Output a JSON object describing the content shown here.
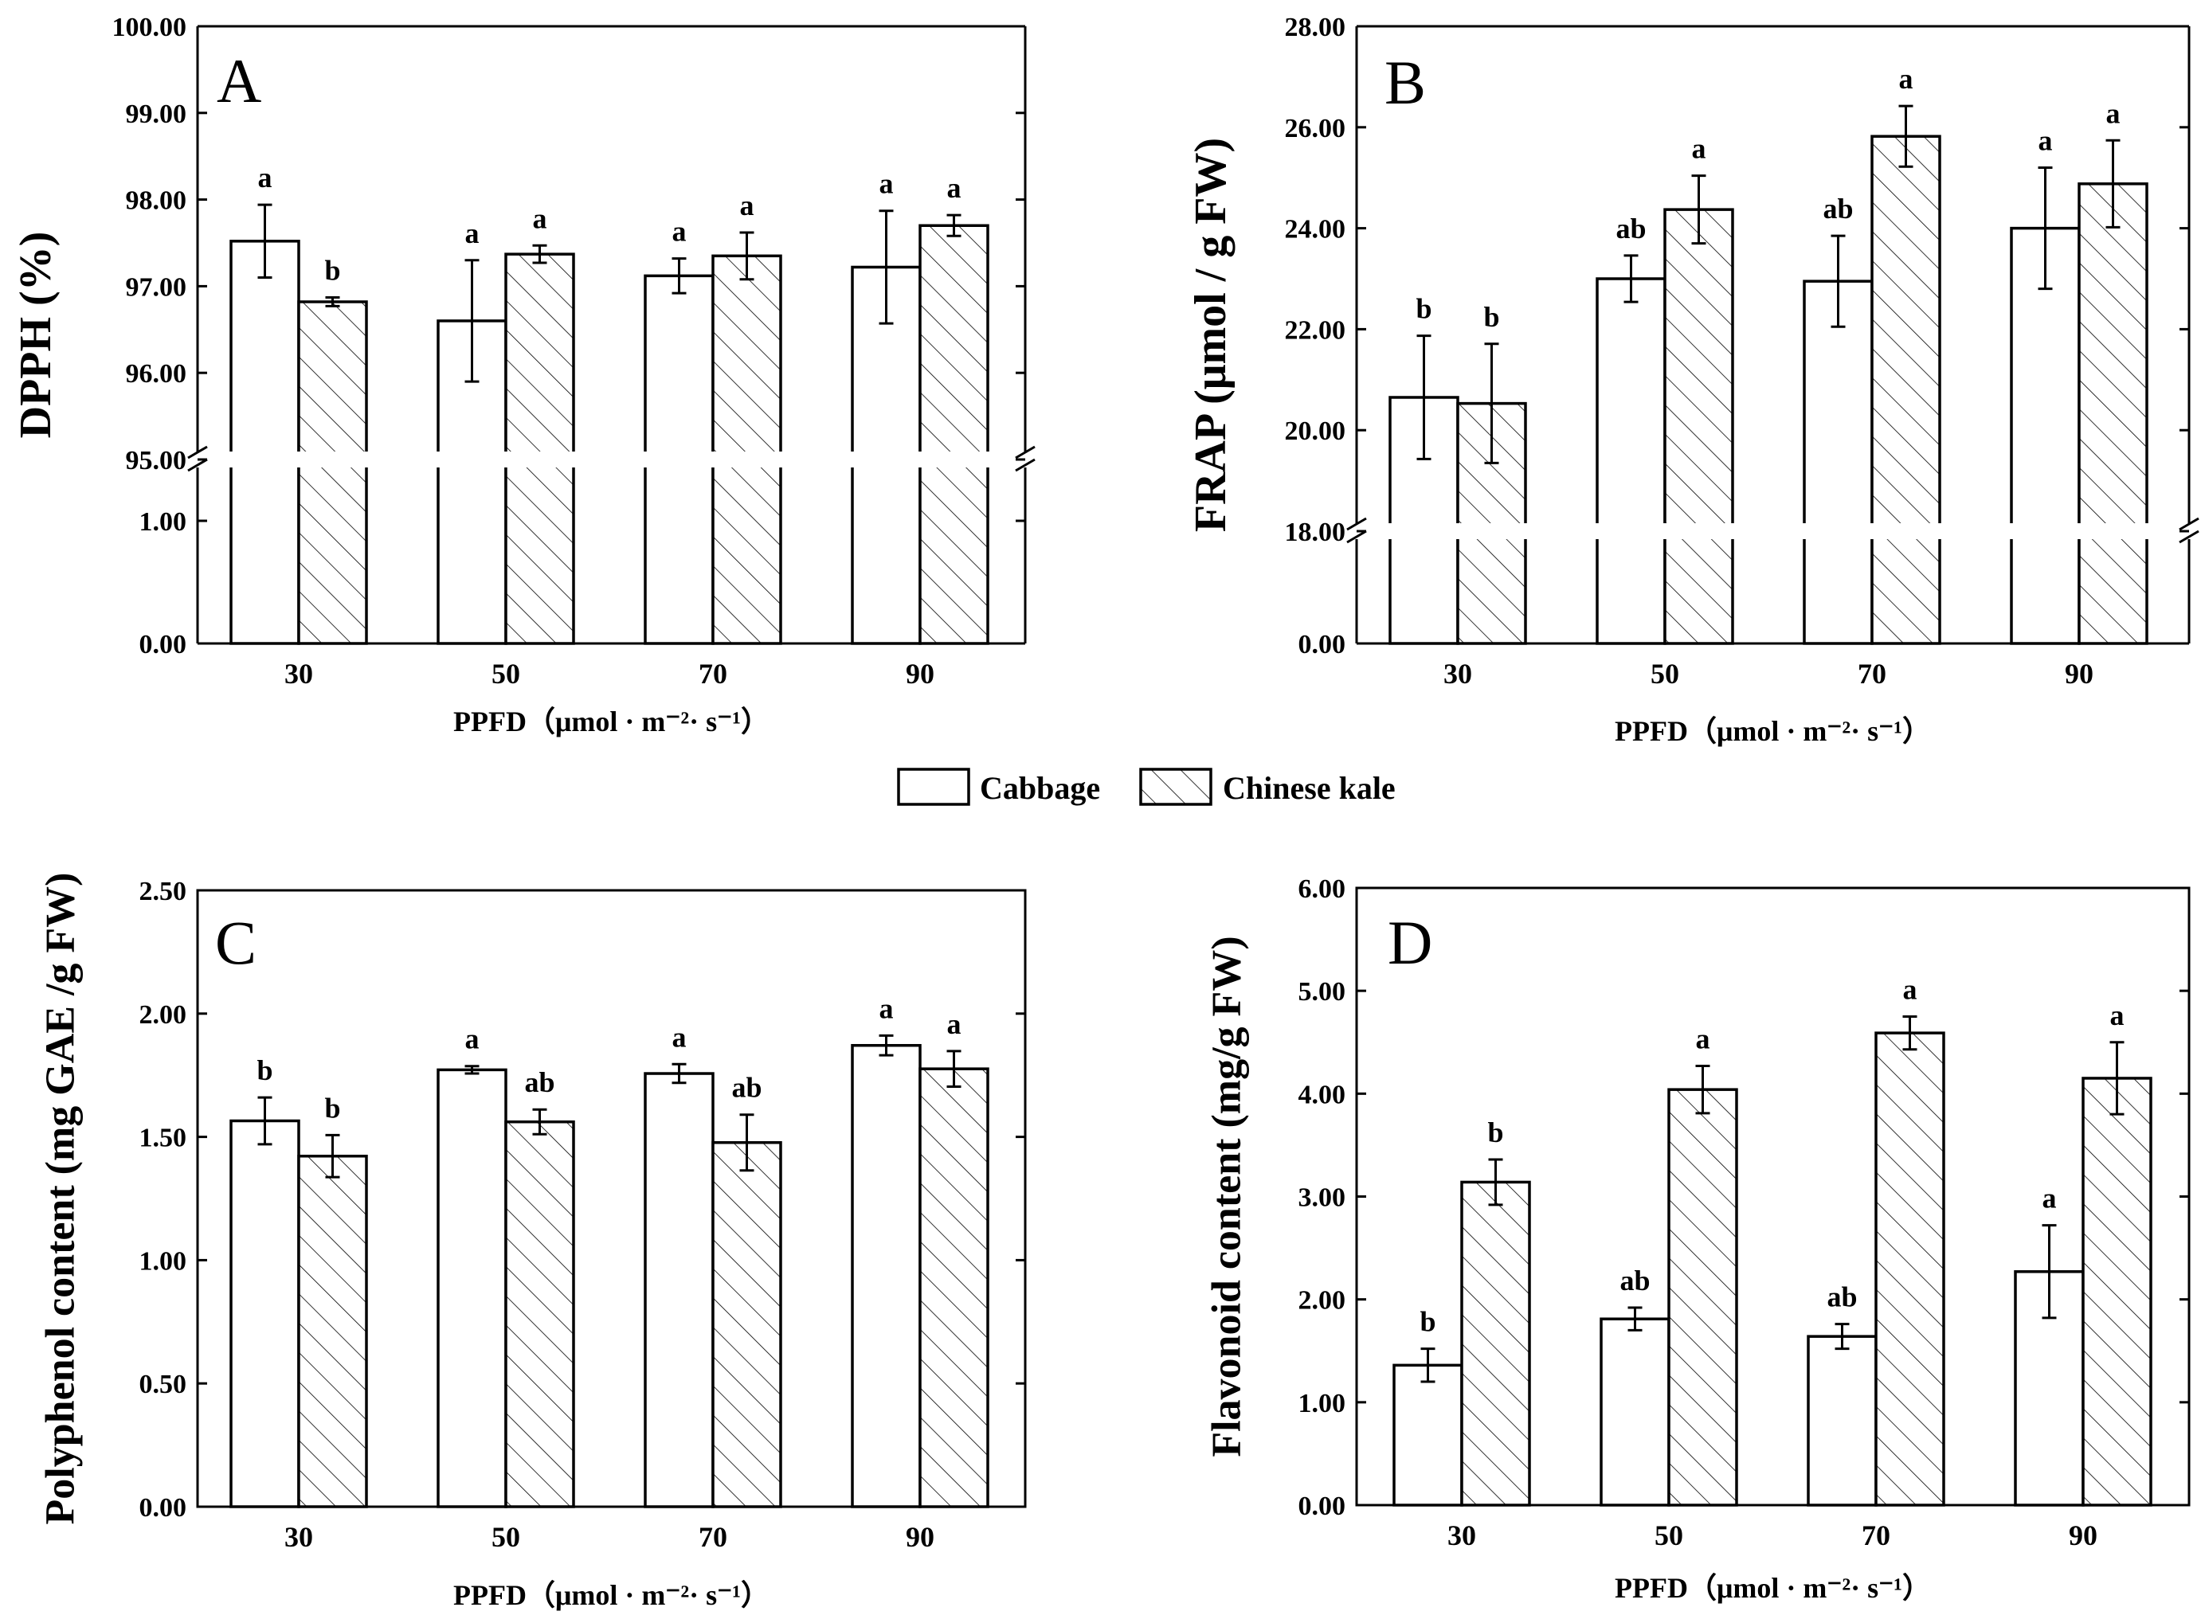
{
  "legend": {
    "entries": [
      "Cabbage",
      "Chinese kale"
    ]
  },
  "chart_data": [
    {
      "type": "bar",
      "panel": "A",
      "ylabel": "DPPH (%)",
      "xlabel": "PPFD（μmol · m⁻²· s⁻¹）",
      "categories": [
        "30",
        "50",
        "70",
        "90"
      ],
      "broken_axis": true,
      "ylim_lower": [
        0,
        1.5
      ],
      "ylim_upper": [
        95,
        100
      ],
      "yticks_lower": [
        "0.00",
        "1.00"
      ],
      "yticks_upper": [
        "95.00",
        "96.00",
        "97.00",
        "98.00",
        "99.00",
        "100.00"
      ],
      "series": [
        {
          "name": "Cabbage",
          "values": [
            97.52,
            96.6,
            97.12,
            97.22
          ],
          "errors": [
            0.42,
            0.7,
            0.2,
            0.65
          ],
          "labels": [
            "a",
            "a",
            "a",
            "a"
          ]
        },
        {
          "name": "Chinese kale",
          "values": [
            96.82,
            97.37,
            97.35,
            97.7
          ],
          "errors": [
            0.05,
            0.1,
            0.27,
            0.12
          ],
          "labels": [
            "b",
            "a",
            "a",
            "a"
          ]
        }
      ]
    },
    {
      "type": "bar",
      "panel": "B",
      "ylabel": "FRAP (μmol / g  FW)",
      "xlabel": "PPFD（μmol · m⁻²· s⁻¹）",
      "categories": [
        "30",
        "50",
        "70",
        "90"
      ],
      "broken_axis": true,
      "ylim_lower": [
        0,
        2.2
      ],
      "ylim_upper": [
        18,
        28
      ],
      "yticks_lower": [
        "0.00"
      ],
      "yticks_upper": [
        "18.00",
        "20.00",
        "22.00",
        "24.00",
        "26.00",
        "28.00"
      ],
      "series": [
        {
          "name": "Cabbage",
          "values": [
            20.65,
            23.0,
            22.95,
            24.0
          ],
          "errors": [
            1.22,
            0.46,
            0.9,
            1.2
          ],
          "labels": [
            "b",
            "ab",
            "ab",
            "a"
          ]
        },
        {
          "name": "Chinese kale",
          "values": [
            20.53,
            24.37,
            25.82,
            24.88
          ],
          "errors": [
            1.18,
            0.67,
            0.6,
            0.86
          ],
          "labels": [
            "b",
            "a",
            "a",
            "a"
          ]
        }
      ]
    },
    {
      "type": "bar",
      "panel": "C",
      "ylabel": "Polyphenol content (mg GAE /g  FW)",
      "xlabel": "PPFD（μmol · m⁻²· s⁻¹）",
      "categories": [
        "30",
        "50",
        "70",
        "90"
      ],
      "broken_axis": false,
      "ylim": [
        0,
        2.5
      ],
      "yticks": [
        "0.00",
        "0.50",
        "1.00",
        "1.50",
        "2.00",
        "2.50"
      ],
      "series": [
        {
          "name": "Cabbage",
          "values": [
            1.565,
            1.772,
            1.757,
            1.871
          ],
          "errors": [
            0.095,
            0.015,
            0.038,
            0.04
          ],
          "labels": [
            "b",
            "a",
            "a",
            "a"
          ]
        },
        {
          "name": "Chinese kale",
          "values": [
            1.422,
            1.561,
            1.477,
            1.776
          ],
          "errors": [
            0.085,
            0.05,
            0.113,
            0.072
          ],
          "labels": [
            "b",
            "ab",
            "ab",
            "a"
          ]
        }
      ]
    },
    {
      "type": "bar",
      "panel": "D",
      "ylabel": "Flavonoid content (mg/g  FW)",
      "xlabel": "PPFD（μmol · m⁻²· s⁻¹）",
      "categories": [
        "30",
        "50",
        "70",
        "90"
      ],
      "broken_axis": false,
      "ylim": [
        0,
        6
      ],
      "yticks": [
        "0.00",
        "1.00",
        "2.00",
        "3.00",
        "4.00",
        "5.00",
        "6.00"
      ],
      "series": [
        {
          "name": "Cabbage",
          "values": [
            1.36,
            1.81,
            1.64,
            2.27
          ],
          "errors": [
            0.16,
            0.11,
            0.12,
            0.45
          ],
          "labels": [
            "b",
            "ab",
            "ab",
            "a"
          ]
        },
        {
          "name": "Chinese kale",
          "values": [
            3.14,
            4.04,
            4.59,
            4.15
          ],
          "errors": [
            0.22,
            0.23,
            0.16,
            0.35
          ],
          "labels": [
            "b",
            "a",
            "a",
            "a"
          ]
        }
      ]
    }
  ]
}
